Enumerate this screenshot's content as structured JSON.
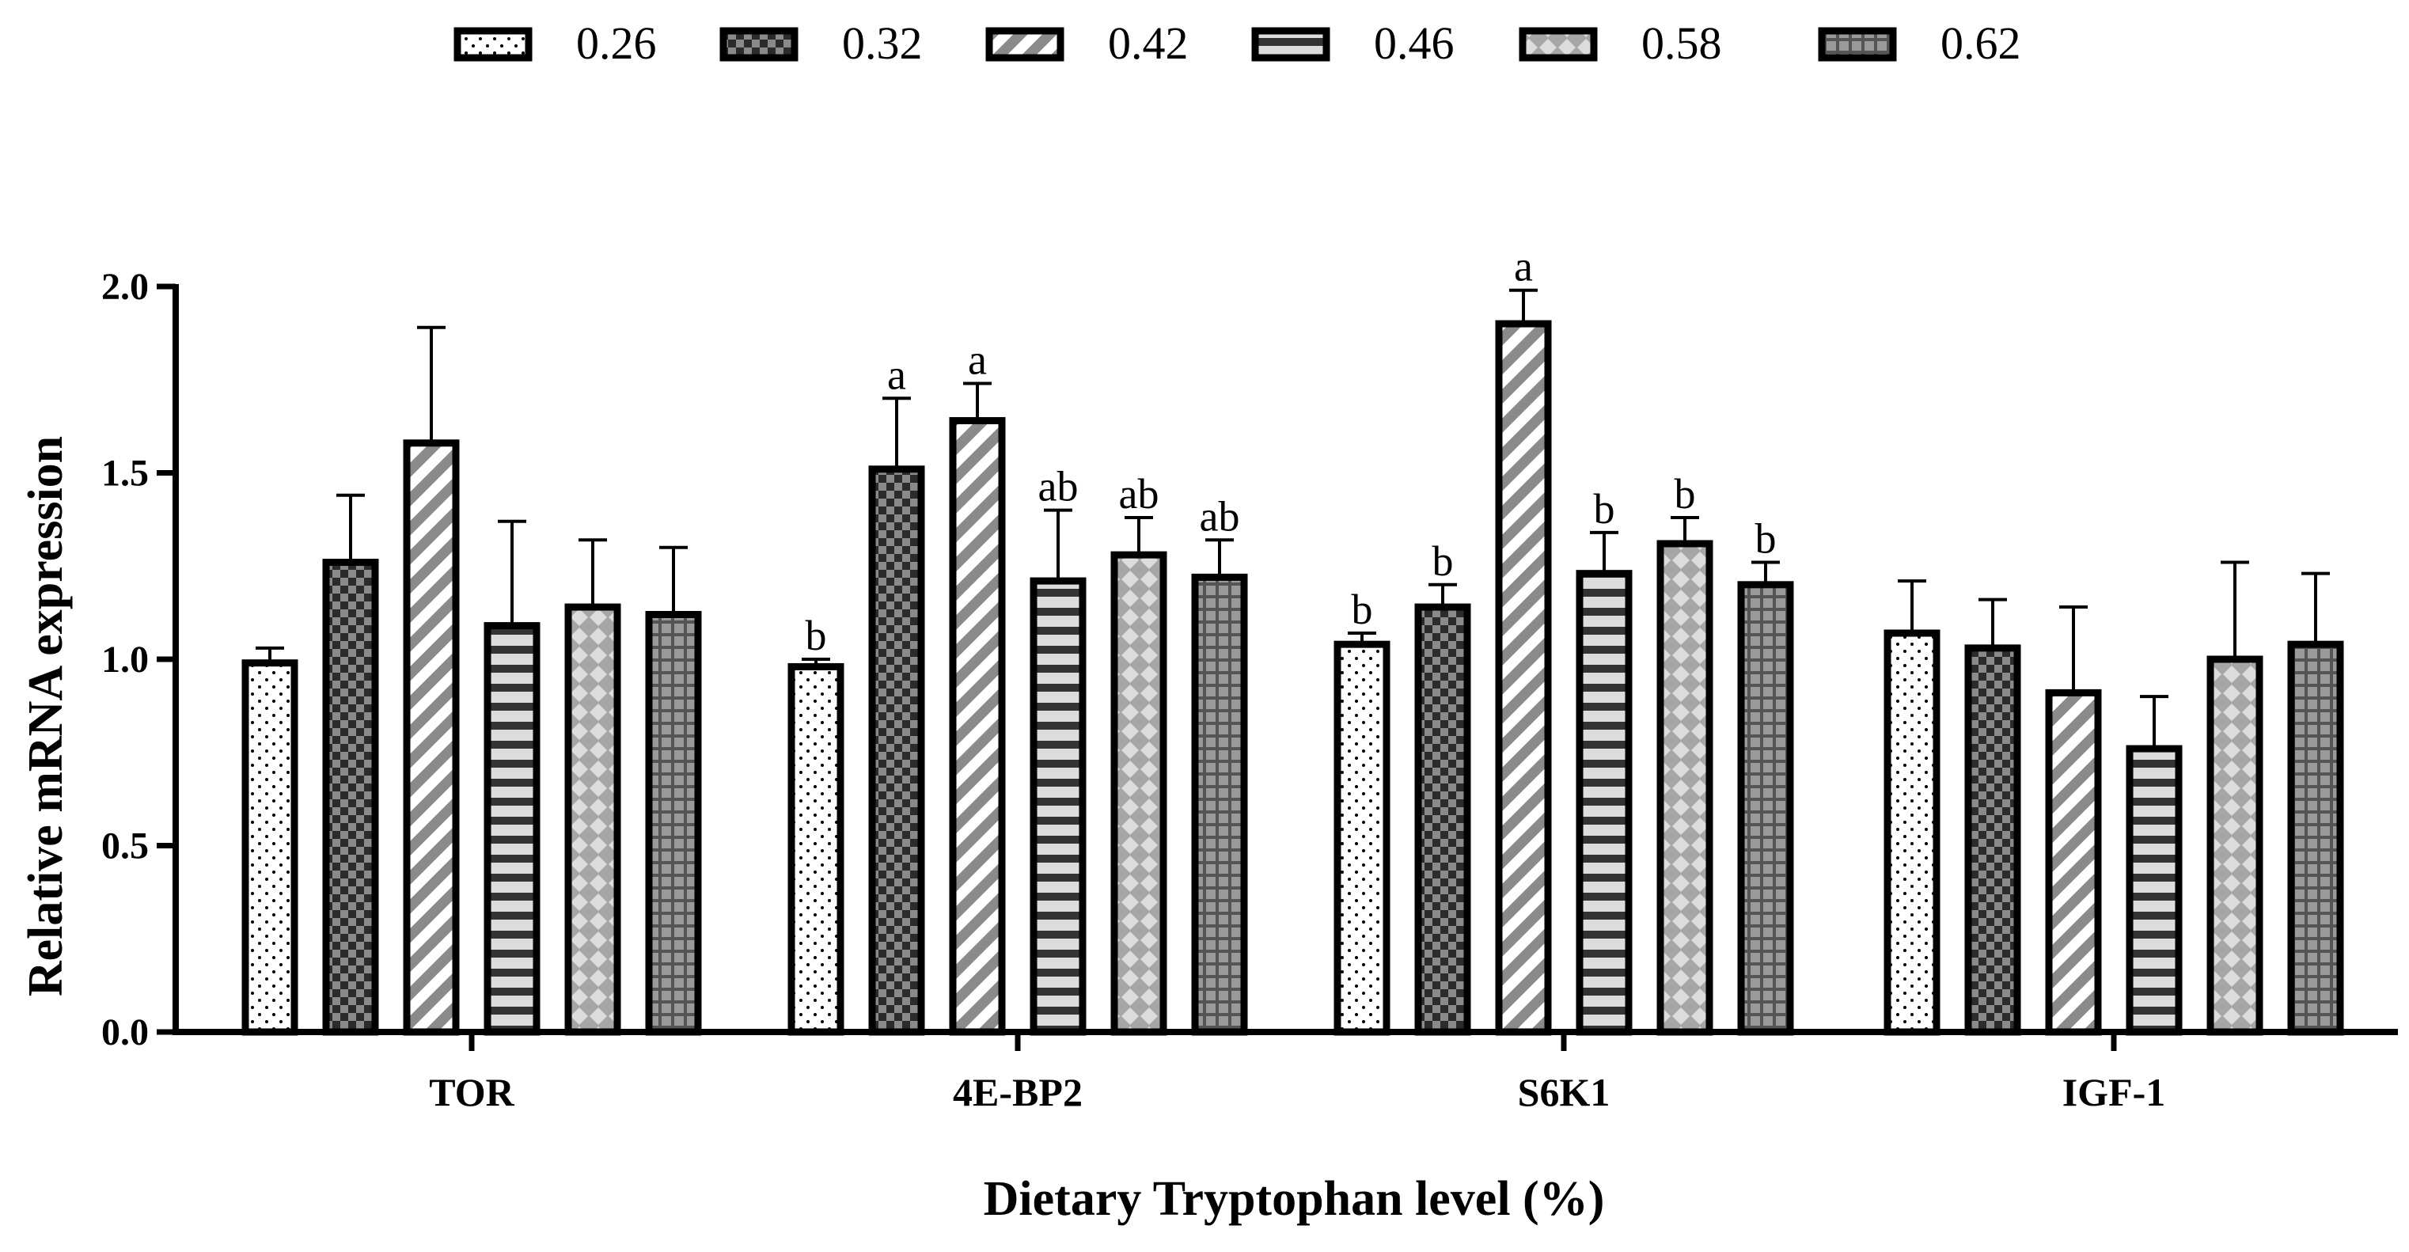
{
  "chart_data": {
    "type": "bar",
    "title": "",
    "xlabel": "Dietary Tryptophan level (%)",
    "ylabel": "Relative mRNA expression",
    "ylim": [
      0,
      2.0
    ],
    "yticks": [
      "0.0",
      "0.5",
      "1.0",
      "1.5",
      "2.0"
    ],
    "grid": false,
    "legend_position": "top",
    "categories": [
      "TOR",
      "4E-BP2",
      "S6K1",
      "IGF-1"
    ],
    "series": [
      {
        "name": "0.26",
        "pattern": "dots",
        "values": [
          0.99,
          0.98,
          1.04,
          1.07
        ],
        "errors": [
          0.04,
          0.02,
          0.03,
          0.14
        ],
        "labels": [
          "",
          "b",
          "b",
          ""
        ]
      },
      {
        "name": "0.32",
        "pattern": "checker",
        "values": [
          1.26,
          1.51,
          1.14,
          1.03
        ],
        "errors": [
          0.18,
          0.19,
          0.06,
          0.13
        ],
        "labels": [
          "",
          "a",
          "b",
          ""
        ]
      },
      {
        "name": "0.42",
        "pattern": "diagonal",
        "values": [
          1.58,
          1.64,
          1.9,
          0.91
        ],
        "errors": [
          0.31,
          0.1,
          0.09,
          0.23
        ],
        "labels": [
          "",
          "a",
          "a",
          ""
        ]
      },
      {
        "name": "0.46",
        "pattern": "horizontal",
        "values": [
          1.09,
          1.21,
          1.23,
          0.76
        ],
        "errors": [
          0.28,
          0.19,
          0.11,
          0.14
        ],
        "labels": [
          "",
          "ab",
          "b",
          ""
        ]
      },
      {
        "name": "0.58",
        "pattern": "diamond",
        "values": [
          1.14,
          1.28,
          1.31,
          1.0
        ],
        "errors": [
          0.18,
          0.1,
          0.07,
          0.26
        ],
        "labels": [
          "",
          "ab",
          "b",
          ""
        ]
      },
      {
        "name": "0.62",
        "pattern": "grid",
        "values": [
          1.12,
          1.22,
          1.2,
          1.04
        ],
        "errors": [
          0.18,
          0.1,
          0.06,
          0.19
        ],
        "labels": [
          "",
          "ab",
          "b",
          ""
        ]
      }
    ]
  },
  "colors": {
    "ink": "#000000",
    "dots_bg": "#ffffff",
    "checker_dark": "#2b2b2b",
    "checker_light": "#8a8a8a",
    "diagonal_bg": "#ffffff",
    "diagonal_stripe": "#8a8a8a",
    "horizontal_bg": "#dcdcdc",
    "horizontal_stripe": "#333333",
    "diamond_bg": "#a6a6a6",
    "diamond_fill": "#dddddd",
    "grid_bg": "#9a9a9a",
    "grid_line": "#555555"
  }
}
